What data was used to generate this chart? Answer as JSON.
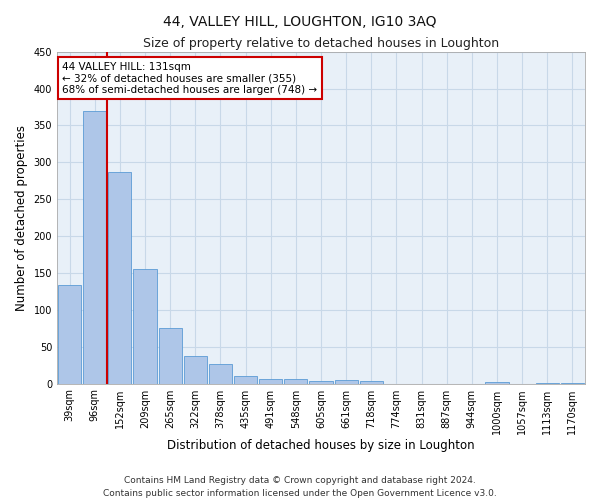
{
  "title": "44, VALLEY HILL, LOUGHTON, IG10 3AQ",
  "subtitle": "Size of property relative to detached houses in Loughton",
  "xlabel": "Distribution of detached houses by size in Loughton",
  "ylabel": "Number of detached properties",
  "footer_line1": "Contains HM Land Registry data © Crown copyright and database right 2024.",
  "footer_line2": "Contains public sector information licensed under the Open Government Licence v3.0.",
  "bar_labels": [
    "39sqm",
    "96sqm",
    "152sqm",
    "209sqm",
    "265sqm",
    "322sqm",
    "378sqm",
    "435sqm",
    "491sqm",
    "548sqm",
    "605sqm",
    "661sqm",
    "718sqm",
    "774sqm",
    "831sqm",
    "887sqm",
    "944sqm",
    "1000sqm",
    "1057sqm",
    "1113sqm",
    "1170sqm"
  ],
  "bar_values": [
    134,
    370,
    287,
    155,
    75,
    38,
    26,
    10,
    6,
    6,
    3,
    5,
    4,
    0,
    0,
    0,
    0,
    2,
    0,
    1,
    1
  ],
  "bar_color": "#aec6e8",
  "bar_edge_color": "#5b9bd5",
  "red_line_x": 1.5,
  "property_label": "44 VALLEY HILL: 131sqm",
  "annotation_line1": "← 32% of detached houses are smaller (355)",
  "annotation_line2": "68% of semi-detached houses are larger (748) →",
  "annotation_box_color": "#ffffff",
  "annotation_box_edge": "#cc0000",
  "red_line_color": "#cc0000",
  "ylim": [
    0,
    450
  ],
  "yticks": [
    0,
    50,
    100,
    150,
    200,
    250,
    300,
    350,
    400,
    450
  ],
  "grid_color": "#c8d8e8",
  "bg_color": "#e8f0f8",
  "title_fontsize": 10,
  "subtitle_fontsize": 9,
  "axis_label_fontsize": 8.5,
  "tick_fontsize": 7,
  "footer_fontsize": 6.5,
  "annotation_fontsize": 7.5
}
